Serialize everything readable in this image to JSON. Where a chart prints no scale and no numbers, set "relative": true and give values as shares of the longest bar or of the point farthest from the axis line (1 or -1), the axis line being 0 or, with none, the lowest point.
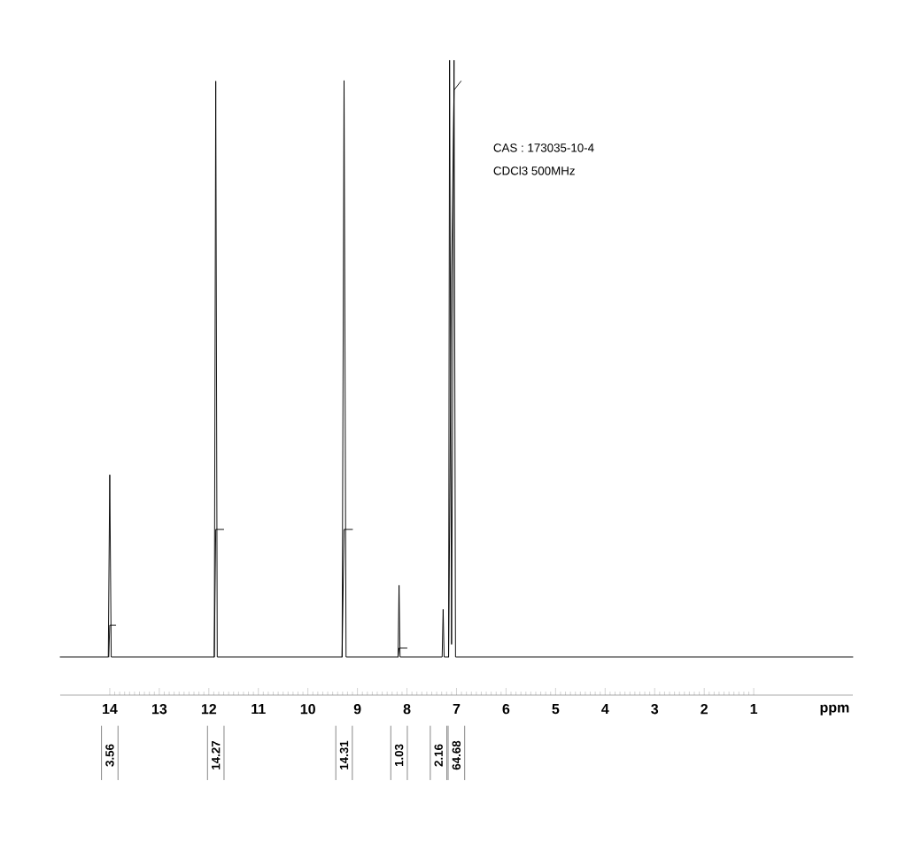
{
  "chart_data": {
    "type": "line",
    "relative": true,
    "xlabel": "ppm",
    "xlim": [
      15,
      -1
    ],
    "xticks": [
      14,
      13,
      12,
      11,
      10,
      9,
      8,
      7,
      6,
      5,
      4,
      3,
      2,
      1
    ],
    "series": [
      {
        "color": "#000000",
        "x": [
          15,
          14.03,
          14.0,
          13.97,
          11.89,
          11.86,
          11.83,
          9.31,
          9.27,
          9.23,
          8.18,
          8.16,
          8.14,
          7.29,
          7.27,
          7.25,
          7.16,
          7.14,
          7.1,
          7.05,
          7.02,
          -1
        ],
        "values": [
          0.06,
          0.06,
          0.347,
          0.06,
          0.06,
          0.967,
          0.06,
          0.06,
          0.968,
          0.06,
          0.06,
          0.173,
          0.06,
          0.06,
          0.135,
          0.06,
          0.06,
          1,
          0.08,
          1,
          0.06,
          0.06
        ]
      },
      {
        "color": "#000000",
        "x": [
          14.02,
          14.0,
          13.88
        ],
        "values": [
          0.06,
          0.11,
          0.11
        ]
      },
      {
        "color": "#000000",
        "x": [
          11.89,
          11.86,
          11.7
        ],
        "values": [
          0.06,
          0.261,
          0.261
        ]
      },
      {
        "color": "#000000",
        "x": [
          9.31,
          9.27,
          9.1
        ],
        "values": [
          0.06,
          0.261,
          0.261
        ]
      },
      {
        "color": "#000000",
        "x": [
          8.18,
          8.16,
          8.0
        ],
        "values": [
          0.06,
          0.074,
          0.074
        ]
      },
      {
        "color": "#000000",
        "x": [
          7.16,
          7.1,
          7.05,
          6.91
        ],
        "values": [
          0.06,
          0.661,
          0.953,
          0.967
        ]
      }
    ],
    "annotations": [
      "CAS : 173035-10-4",
      "CDCl3    500MHz",
      "3.56",
      "14.27",
      "14.31",
      "1.03",
      "2.16",
      "64.68"
    ]
  }
}
